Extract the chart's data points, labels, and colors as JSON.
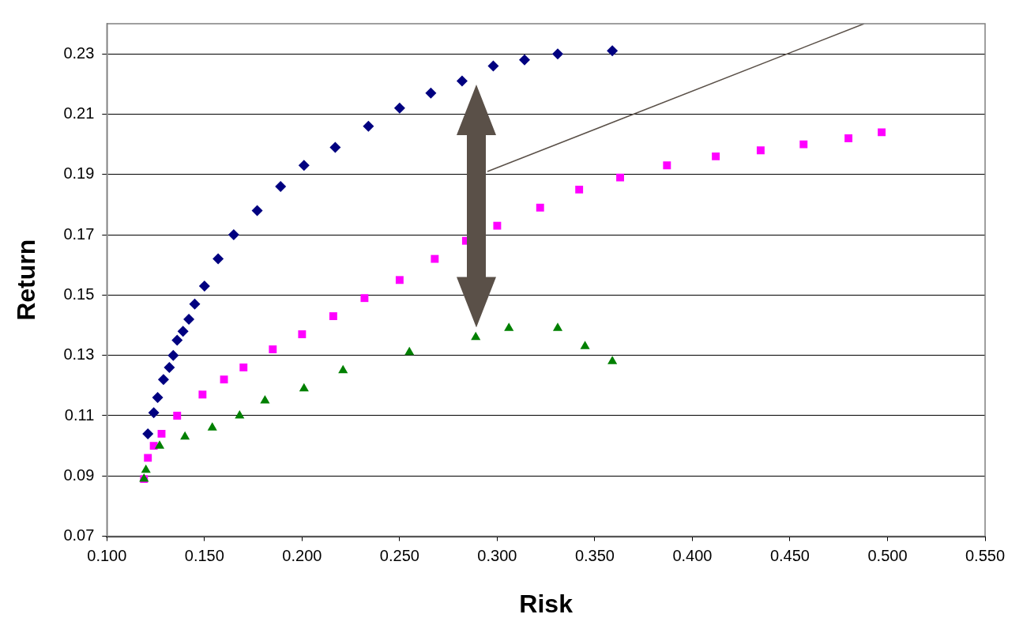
{
  "chart_data": {
    "type": "scatter",
    "xlabel": "Risk",
    "ylabel": "Return",
    "xlim": [
      0.1,
      0.55
    ],
    "xticks": [
      {
        "value": 0.1,
        "label": "0.100"
      },
      {
        "value": 0.15,
        "label": "0.150"
      },
      {
        "value": 0.2,
        "label": "0.200"
      },
      {
        "value": 0.25,
        "label": "0.250"
      },
      {
        "value": 0.3,
        "label": "0.300"
      },
      {
        "value": 0.35,
        "label": "0.350"
      },
      {
        "value": 0.4,
        "label": "0.400"
      },
      {
        "value": 0.45,
        "label": "0.450"
      },
      {
        "value": 0.5,
        "label": "0.500"
      },
      {
        "value": 0.55,
        "label": "0.550"
      }
    ],
    "ylim": [
      0.07,
      0.24
    ],
    "yticks": [
      0.07,
      0.09,
      0.11,
      0.13,
      0.15,
      0.17,
      0.19,
      0.21,
      0.23
    ],
    "grid": "y",
    "legend": false,
    "series": [
      {
        "color": "#000080",
        "marker": "diamond",
        "x": [
          0.121,
          0.124,
          0.126,
          0.129,
          0.132,
          0.134,
          0.136,
          0.139,
          0.142,
          0.145,
          0.15,
          0.157,
          0.165,
          0.177,
          0.189,
          0.201,
          0.217,
          0.234,
          0.25,
          0.266,
          0.282,
          0.298,
          0.314,
          0.331,
          0.359
        ],
        "values": [
          0.104,
          0.111,
          0.116,
          0.122,
          0.126,
          0.13,
          0.135,
          0.138,
          0.142,
          0.147,
          0.153,
          0.162,
          0.17,
          0.178,
          0.186,
          0.193,
          0.199,
          0.206,
          0.212,
          0.217,
          0.221,
          0.226,
          0.228,
          0.23,
          0.231
        ]
      },
      {
        "color": "#ff00ff",
        "marker": "square",
        "x": [
          0.119,
          0.121,
          0.124,
          0.128,
          0.136,
          0.149,
          0.16,
          0.17,
          0.185,
          0.2,
          0.216,
          0.232,
          0.25,
          0.268,
          0.284,
          0.3,
          0.322,
          0.342,
          0.363,
          0.387,
          0.412,
          0.435,
          0.457,
          0.48,
          0.497
        ],
        "values": [
          0.089,
          0.096,
          0.1,
          0.104,
          0.11,
          0.117,
          0.122,
          0.126,
          0.132,
          0.137,
          0.143,
          0.149,
          0.155,
          0.162,
          0.168,
          0.173,
          0.179,
          0.185,
          0.189,
          0.193,
          0.196,
          0.198,
          0.2,
          0.202,
          0.204
        ]
      },
      {
        "color": "#008000",
        "marker": "triangle",
        "x": [
          0.119,
          0.12,
          0.127,
          0.14,
          0.154,
          0.168,
          0.181,
          0.201,
          0.221,
          0.255,
          0.289,
          0.306,
          0.331,
          0.345,
          0.359
        ],
        "values": [
          0.089,
          0.092,
          0.1,
          0.103,
          0.106,
          0.11,
          0.115,
          0.119,
          0.125,
          0.131,
          0.136,
          0.139,
          0.139,
          0.133,
          0.128
        ]
      },
      {
        "type": "line",
        "color": "#5a5048",
        "marker": "none",
        "x": [
          0.295,
          0.488
        ],
        "values": [
          0.191,
          0.24
        ]
      }
    ]
  }
}
